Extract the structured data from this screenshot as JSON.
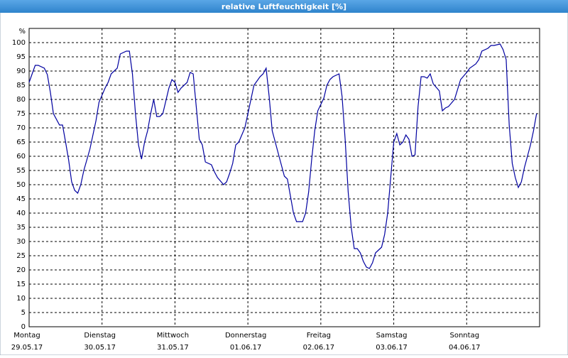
{
  "chart_data": {
    "type": "line",
    "title": "relative Luftfeuchtigkeit [%]",
    "y_label": "%",
    "x": [
      0,
      2,
      3,
      5,
      6,
      7,
      8,
      10,
      11,
      12,
      13,
      14,
      15,
      16,
      17,
      18,
      20,
      21,
      22,
      23,
      25,
      26,
      27,
      29,
      30,
      32,
      33,
      34,
      35,
      36,
      37,
      38,
      39,
      40,
      41,
      42,
      43,
      44,
      46,
      47,
      48,
      49,
      50,
      52,
      53,
      54,
      55,
      56,
      57,
      58,
      60,
      61,
      62,
      64,
      65,
      66,
      67,
      68,
      69,
      71,
      72,
      73,
      74,
      76,
      77,
      78,
      79,
      80,
      82,
      83,
      84,
      85,
      86,
      87,
      88,
      90,
      91,
      92,
      93,
      94,
      95,
      97,
      98,
      99,
      100,
      102,
      103,
      104,
      105,
      106,
      107,
      108,
      109,
      110,
      111,
      112,
      113,
      114,
      116,
      117,
      118,
      119,
      120,
      121,
      122,
      123,
      124,
      125,
      126,
      127,
      128,
      129,
      130,
      131,
      132,
      133,
      135,
      136,
      137,
      138,
      140,
      141,
      142,
      144,
      145,
      147,
      148,
      149,
      151,
      152,
      153,
      155,
      156,
      157,
      158,
      159,
      160,
      161,
      162,
      163,
      165,
      166,
      167
    ],
    "series": [
      {
        "name": "relative Luftfeuchtigkeit",
        "color": "#0000a0",
        "values": [
          86,
          92,
          92,
          91,
          88.75,
          82.5,
          75,
          71,
          71,
          65,
          58.75,
          51,
          48,
          47,
          50,
          55,
          62.5,
          67.5,
          72.5,
          79,
          84,
          86,
          89,
          91,
          96,
          97,
          97,
          89,
          75,
          64,
          59,
          65,
          69,
          75,
          80,
          74,
          74,
          75,
          84,
          87,
          86,
          82.5,
          84,
          86,
          89.5,
          89,
          77.5,
          66,
          64,
          58,
          57,
          54.5,
          52.5,
          50,
          51,
          54,
          57.5,
          64,
          65,
          70,
          75,
          80,
          85,
          88,
          89,
          91,
          81,
          69,
          61,
          57,
          53,
          52,
          46,
          40,
          37,
          37,
          40,
          47.5,
          59,
          69,
          76,
          80.5,
          85,
          87,
          88,
          89,
          81,
          66,
          47.5,
          35,
          27.5,
          27.5,
          26,
          23,
          21,
          20.5,
          22.5,
          26,
          28,
          32.5,
          40,
          52.5,
          65,
          68,
          64,
          65,
          67.5,
          66,
          60,
          60.5,
          77.5,
          88,
          88,
          87.5,
          89,
          85.5,
          83,
          76,
          77,
          77.5,
          80,
          83.5,
          87,
          89.5,
          91,
          92.5,
          94,
          97,
          98,
          99,
          99,
          99.5,
          97.5,
          94,
          71,
          57.5,
          52.5,
          49,
          51,
          56,
          64,
          69,
          75
        ]
      }
    ],
    "xlim": [
      0,
      168
    ],
    "xticks": [
      {
        "value": 0,
        "label": "Montag",
        "sublabel": "29.05.17"
      },
      {
        "value": 24,
        "label": "Dienstag",
        "sublabel": "30.05.17"
      },
      {
        "value": 48,
        "label": "Mittwoch",
        "sublabel": "31.05.17"
      },
      {
        "value": 72,
        "label": "Donnerstag",
        "sublabel": "01.06.17"
      },
      {
        "value": 96,
        "label": "Freitag",
        "sublabel": "02.06.17"
      },
      {
        "value": 120,
        "label": "Samstag",
        "sublabel": "03.06.17"
      },
      {
        "value": 144,
        "label": "Sonntag",
        "sublabel": "04.06.17"
      }
    ],
    "ylim": [
      0,
      105
    ],
    "yticks": [
      0,
      5,
      10,
      15,
      20,
      25,
      30,
      35,
      40,
      45,
      50,
      55,
      60,
      65,
      70,
      75,
      80,
      85,
      90,
      95,
      100
    ],
    "grid": true
  }
}
